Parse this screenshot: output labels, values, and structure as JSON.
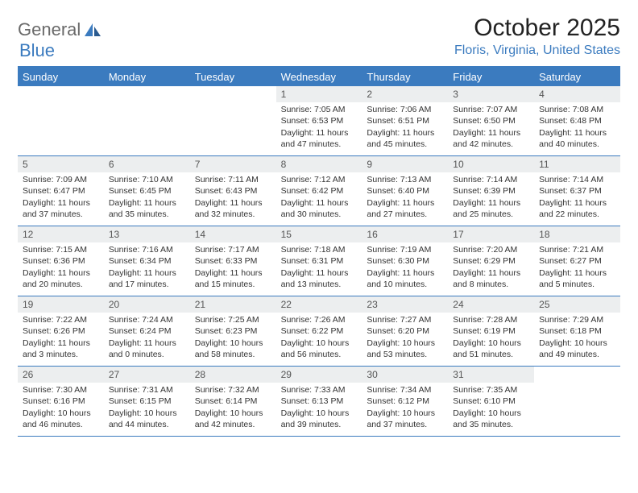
{
  "logo": {
    "text1": "General",
    "text2": "Blue"
  },
  "title": "October 2025",
  "location": "Floris, Virginia, United States",
  "colors": {
    "accent": "#3b7bbf",
    "logo_gray": "#6a6a6a",
    "daynum_bg": "#eceeef",
    "text": "#333333",
    "background": "#ffffff"
  },
  "day_headers": [
    "Sunday",
    "Monday",
    "Tuesday",
    "Wednesday",
    "Thursday",
    "Friday",
    "Saturday"
  ],
  "weeks": [
    [
      null,
      null,
      null,
      {
        "n": "1",
        "sr": "7:05 AM",
        "ss": "6:53 PM",
        "dl": "Daylight: 11 hours and 47 minutes."
      },
      {
        "n": "2",
        "sr": "7:06 AM",
        "ss": "6:51 PM",
        "dl": "Daylight: 11 hours and 45 minutes."
      },
      {
        "n": "3",
        "sr": "7:07 AM",
        "ss": "6:50 PM",
        "dl": "Daylight: 11 hours and 42 minutes."
      },
      {
        "n": "4",
        "sr": "7:08 AM",
        "ss": "6:48 PM",
        "dl": "Daylight: 11 hours and 40 minutes."
      }
    ],
    [
      {
        "n": "5",
        "sr": "7:09 AM",
        "ss": "6:47 PM",
        "dl": "Daylight: 11 hours and 37 minutes."
      },
      {
        "n": "6",
        "sr": "7:10 AM",
        "ss": "6:45 PM",
        "dl": "Daylight: 11 hours and 35 minutes."
      },
      {
        "n": "7",
        "sr": "7:11 AM",
        "ss": "6:43 PM",
        "dl": "Daylight: 11 hours and 32 minutes."
      },
      {
        "n": "8",
        "sr": "7:12 AM",
        "ss": "6:42 PM",
        "dl": "Daylight: 11 hours and 30 minutes."
      },
      {
        "n": "9",
        "sr": "7:13 AM",
        "ss": "6:40 PM",
        "dl": "Daylight: 11 hours and 27 minutes."
      },
      {
        "n": "10",
        "sr": "7:14 AM",
        "ss": "6:39 PM",
        "dl": "Daylight: 11 hours and 25 minutes."
      },
      {
        "n": "11",
        "sr": "7:14 AM",
        "ss": "6:37 PM",
        "dl": "Daylight: 11 hours and 22 minutes."
      }
    ],
    [
      {
        "n": "12",
        "sr": "7:15 AM",
        "ss": "6:36 PM",
        "dl": "Daylight: 11 hours and 20 minutes."
      },
      {
        "n": "13",
        "sr": "7:16 AM",
        "ss": "6:34 PM",
        "dl": "Daylight: 11 hours and 17 minutes."
      },
      {
        "n": "14",
        "sr": "7:17 AM",
        "ss": "6:33 PM",
        "dl": "Daylight: 11 hours and 15 minutes."
      },
      {
        "n": "15",
        "sr": "7:18 AM",
        "ss": "6:31 PM",
        "dl": "Daylight: 11 hours and 13 minutes."
      },
      {
        "n": "16",
        "sr": "7:19 AM",
        "ss": "6:30 PM",
        "dl": "Daylight: 11 hours and 10 minutes."
      },
      {
        "n": "17",
        "sr": "7:20 AM",
        "ss": "6:29 PM",
        "dl": "Daylight: 11 hours and 8 minutes."
      },
      {
        "n": "18",
        "sr": "7:21 AM",
        "ss": "6:27 PM",
        "dl": "Daylight: 11 hours and 5 minutes."
      }
    ],
    [
      {
        "n": "19",
        "sr": "7:22 AM",
        "ss": "6:26 PM",
        "dl": "Daylight: 11 hours and 3 minutes."
      },
      {
        "n": "20",
        "sr": "7:24 AM",
        "ss": "6:24 PM",
        "dl": "Daylight: 11 hours and 0 minutes."
      },
      {
        "n": "21",
        "sr": "7:25 AM",
        "ss": "6:23 PM",
        "dl": "Daylight: 10 hours and 58 minutes."
      },
      {
        "n": "22",
        "sr": "7:26 AM",
        "ss": "6:22 PM",
        "dl": "Daylight: 10 hours and 56 minutes."
      },
      {
        "n": "23",
        "sr": "7:27 AM",
        "ss": "6:20 PM",
        "dl": "Daylight: 10 hours and 53 minutes."
      },
      {
        "n": "24",
        "sr": "7:28 AM",
        "ss": "6:19 PM",
        "dl": "Daylight: 10 hours and 51 minutes."
      },
      {
        "n": "25",
        "sr": "7:29 AM",
        "ss": "6:18 PM",
        "dl": "Daylight: 10 hours and 49 minutes."
      }
    ],
    [
      {
        "n": "26",
        "sr": "7:30 AM",
        "ss": "6:16 PM",
        "dl": "Daylight: 10 hours and 46 minutes."
      },
      {
        "n": "27",
        "sr": "7:31 AM",
        "ss": "6:15 PM",
        "dl": "Daylight: 10 hours and 44 minutes."
      },
      {
        "n": "28",
        "sr": "7:32 AM",
        "ss": "6:14 PM",
        "dl": "Daylight: 10 hours and 42 minutes."
      },
      {
        "n": "29",
        "sr": "7:33 AM",
        "ss": "6:13 PM",
        "dl": "Daylight: 10 hours and 39 minutes."
      },
      {
        "n": "30",
        "sr": "7:34 AM",
        "ss": "6:12 PM",
        "dl": "Daylight: 10 hours and 37 minutes."
      },
      {
        "n": "31",
        "sr": "7:35 AM",
        "ss": "6:10 PM",
        "dl": "Daylight: 10 hours and 35 minutes."
      },
      null
    ]
  ],
  "labels": {
    "sunrise": "Sunrise:",
    "sunset": "Sunset:"
  }
}
